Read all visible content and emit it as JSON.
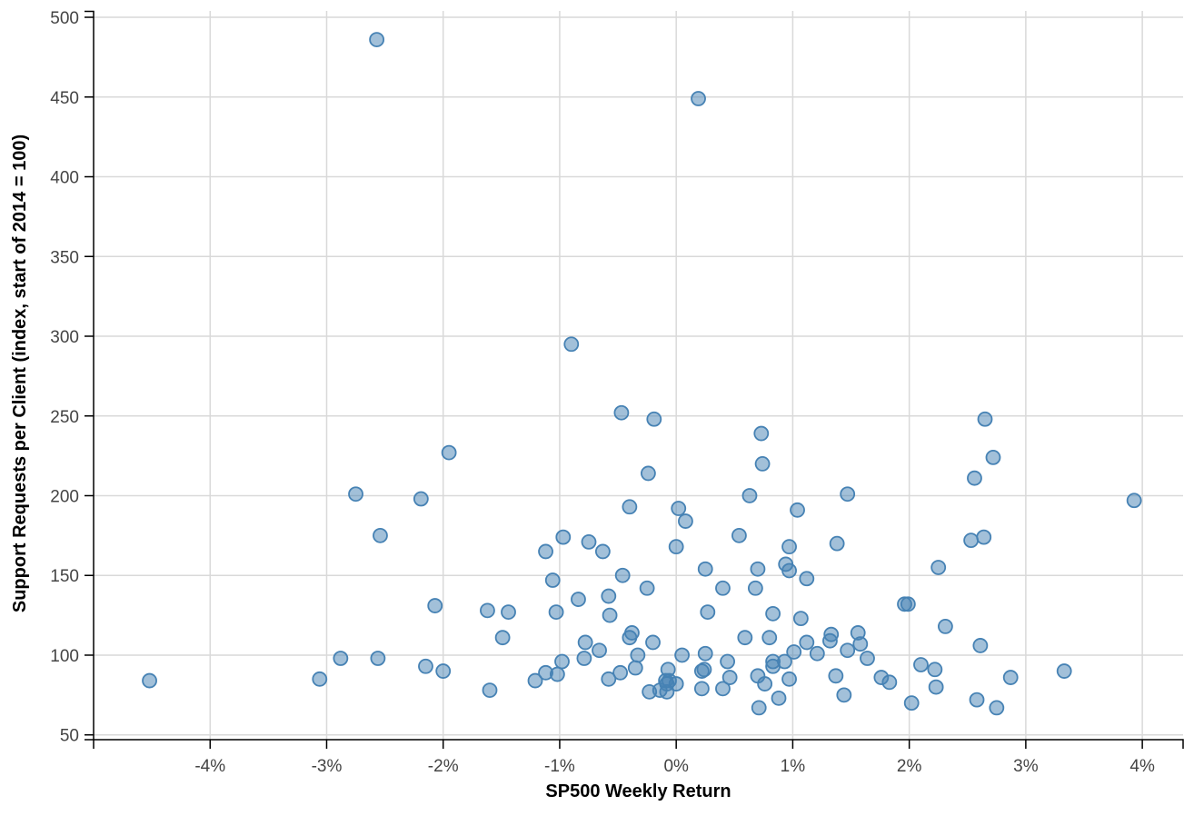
{
  "chart_data": {
    "type": "scatter",
    "title": "",
    "xlabel": "SP500 Weekly Return",
    "ylabel": "Support Requests per Client (index, start of 2014 = 100)",
    "xlim": [
      -0.05,
      0.0435
    ],
    "ylim": [
      47,
      504
    ],
    "x_ticks": [
      -0.04,
      -0.03,
      -0.02,
      -0.01,
      0,
      0.01,
      0.02,
      0.03,
      0.04
    ],
    "x_tick_labels": [
      "-4%",
      "-3%",
      "-2%",
      "-1%",
      "0%",
      "1%",
      "2%",
      "3%",
      "4%"
    ],
    "y_ticks": [
      50,
      100,
      150,
      200,
      250,
      300,
      350,
      400,
      450,
      500
    ],
    "y_tick_labels": [
      "50",
      "100",
      "150",
      "200",
      "250",
      "300",
      "350",
      "400",
      "450",
      "500"
    ],
    "grid": true,
    "colors": {
      "point_fill": "#4682b4",
      "point_stroke": "#4682b4",
      "grid": "#d9d9d9"
    },
    "points": [
      [
        -0.0257,
        486
      ],
      [
        0.0019,
        449
      ],
      [
        -0.009,
        295
      ],
      [
        -0.0047,
        252
      ],
      [
        -0.0019,
        248
      ],
      [
        0.0265,
        248
      ],
      [
        0.0073,
        239
      ],
      [
        -0.0195,
        227
      ],
      [
        0.0272,
        224
      ],
      [
        0.0074,
        220
      ],
      [
        -0.0024,
        214
      ],
      [
        0.0256,
        211
      ],
      [
        -0.0275,
        201
      ],
      [
        0.0147,
        201
      ],
      [
        0.0063,
        200
      ],
      [
        -0.0219,
        198
      ],
      [
        0.0393,
        197
      ],
      [
        -0.004,
        193
      ],
      [
        0.0002,
        192
      ],
      [
        0.0104,
        191
      ],
      [
        0.0008,
        184
      ],
      [
        -0.0254,
        175
      ],
      [
        0.0054,
        175
      ],
      [
        0.0264,
        174
      ],
      [
        -0.0097,
        174
      ],
      [
        0.0253,
        172
      ],
      [
        -0.0075,
        171
      ],
      [
        0.0138,
        170
      ],
      [
        0.0,
        168
      ],
      [
        0.0097,
        168
      ],
      [
        -0.0112,
        165
      ],
      [
        -0.0063,
        165
      ],
      [
        0.0225,
        155
      ],
      [
        0.007,
        154
      ],
      [
        0.0025,
        154
      ],
      [
        0.0094,
        157
      ],
      [
        0.0097,
        153
      ],
      [
        -0.0046,
        150
      ],
      [
        -0.0106,
        147
      ],
      [
        0.0112,
        148
      ],
      [
        0.004,
        142
      ],
      [
        0.0068,
        142
      ],
      [
        -0.0025,
        142
      ],
      [
        -0.0058,
        137
      ],
      [
        -0.0084,
        135
      ],
      [
        0.0196,
        132
      ],
      [
        0.0199,
        132
      ],
      [
        -0.0207,
        131
      ],
      [
        -0.0162,
        128
      ],
      [
        -0.0144,
        127
      ],
      [
        -0.0103,
        127
      ],
      [
        0.0027,
        127
      ],
      [
        0.0083,
        126
      ],
      [
        -0.0057,
        125
      ],
      [
        0.0107,
        123
      ],
      [
        0.0231,
        118
      ],
      [
        -0.0038,
        114
      ],
      [
        0.0156,
        114
      ],
      [
        0.0133,
        113
      ],
      [
        -0.0149,
        111
      ],
      [
        -0.004,
        111
      ],
      [
        0.0059,
        111
      ],
      [
        0.008,
        111
      ],
      [
        0.0132,
        109
      ],
      [
        -0.0078,
        108
      ],
      [
        -0.002,
        108
      ],
      [
        0.0112,
        108
      ],
      [
        0.0261,
        106
      ],
      [
        0.0158,
        107
      ],
      [
        -0.0066,
        103
      ],
      [
        0.0147,
        103
      ],
      [
        0.0101,
        102
      ],
      [
        0.0121,
        101
      ],
      [
        -0.0033,
        100
      ],
      [
        0.0025,
        101
      ],
      [
        0.0005,
        100
      ],
      [
        -0.0288,
        98
      ],
      [
        -0.0256,
        98
      ],
      [
        -0.0079,
        98
      ],
      [
        0.0164,
        98
      ],
      [
        -0.0098,
        96
      ],
      [
        0.0044,
        96
      ],
      [
        0.0083,
        96
      ],
      [
        0.0093,
        96
      ],
      [
        -0.0215,
        93
      ],
      [
        -0.0035,
        92
      ],
      [
        0.0083,
        93
      ],
      [
        0.021,
        94
      ],
      [
        -0.02,
        90
      ],
      [
        -0.0112,
        89
      ],
      [
        -0.0048,
        89
      ],
      [
        -0.0102,
        88
      ],
      [
        -0.0007,
        91
      ],
      [
        0.0022,
        90
      ],
      [
        0.0024,
        91
      ],
      [
        0.0222,
        91
      ],
      [
        0.0333,
        90
      ],
      [
        -0.0306,
        85
      ],
      [
        -0.0452,
        84
      ],
      [
        -0.0121,
        84
      ],
      [
        -0.0058,
        85
      ],
      [
        -0.0009,
        84
      ],
      [
        -0.0008,
        82
      ],
      [
        -0.0006,
        84
      ],
      [
        0.0,
        82
      ],
      [
        0.0046,
        86
      ],
      [
        0.007,
        87
      ],
      [
        0.0097,
        85
      ],
      [
        0.0137,
        87
      ],
      [
        0.0176,
        86
      ],
      [
        0.0287,
        86
      ],
      [
        0.0183,
        83
      ],
      [
        0.0076,
        82
      ],
      [
        0.0223,
        80
      ],
      [
        -0.016,
        78
      ],
      [
        -0.0023,
        77
      ],
      [
        -0.0014,
        78
      ],
      [
        -0.0008,
        77
      ],
      [
        0.0022,
        79
      ],
      [
        0.004,
        79
      ],
      [
        0.0088,
        73
      ],
      [
        0.0144,
        75
      ],
      [
        0.0258,
        72
      ],
      [
        0.0202,
        70
      ],
      [
        0.0071,
        67
      ],
      [
        0.0275,
        67
      ]
    ]
  }
}
